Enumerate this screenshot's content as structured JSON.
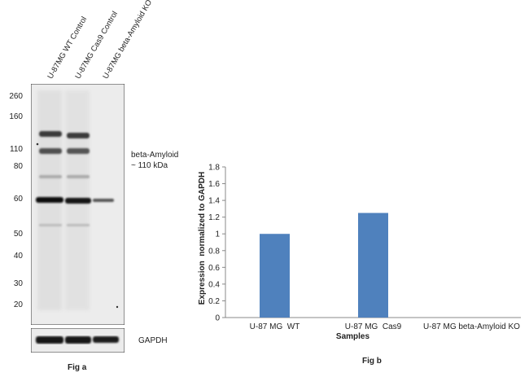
{
  "western_blot": {
    "lanes": [
      "U-87MG WT Control",
      "U-87MG Cas9 Control",
      "U-87MG beta-Amyloid KO"
    ],
    "markers": [
      "260",
      "160",
      "110",
      "80",
      "60",
      "50",
      "40",
      "30",
      "20"
    ],
    "target_label_line1": "beta-Amyloid",
    "target_label_line2": "~ 110 kDa",
    "loading_control_label": "GAPDH",
    "figure_label": "Fig a"
  },
  "chart_data": {
    "type": "bar",
    "categories": [
      "U-87 MG  WT",
      "U-87 MG  Cas9",
      "U-87 MG beta-Amyloid KO"
    ],
    "values": [
      1.0,
      1.25,
      0
    ],
    "xlabel": "Samples",
    "ylabel": "Expression  normalized to GAPDH",
    "ylim": [
      0,
      1.8
    ],
    "yticks": [
      "0",
      "0.2",
      "0.4",
      "0.6",
      "0.8",
      "1",
      "1.2",
      "1.4",
      "1.6",
      "1.8"
    ],
    "bar_color": "#4f81bd",
    "grid": false,
    "figure_label": "Fig b"
  }
}
